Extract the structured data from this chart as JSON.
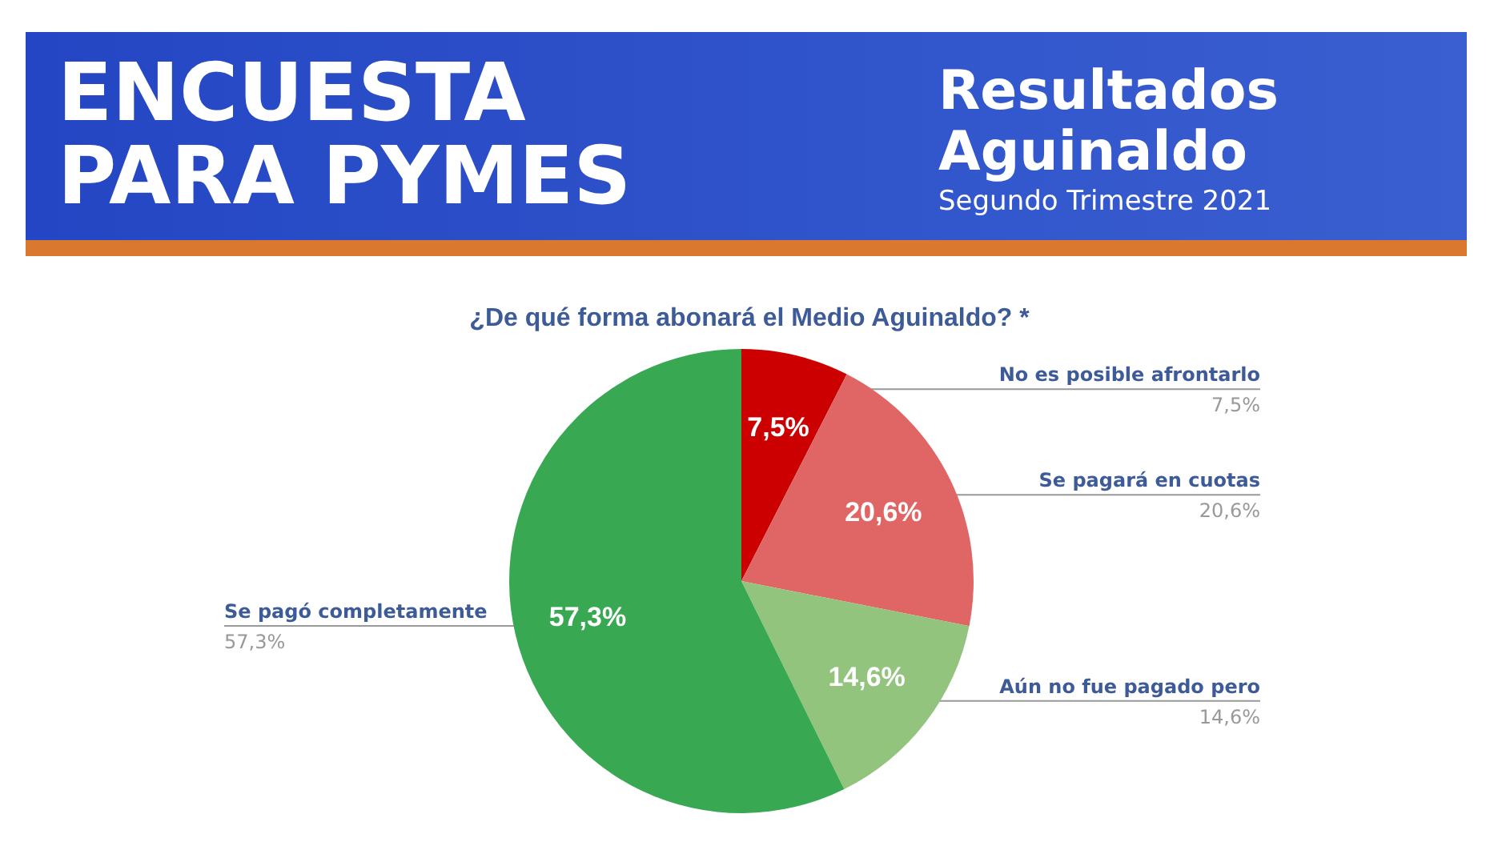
{
  "chart_data": {
    "type": "pie",
    "title": "ENCUESTA PARA PYMES",
    "subtitle": "Resultados Aguinaldo",
    "annotations": [
      "Segundo Trimestre 2021",
      "¿De qué forma abonará el Medio Aguinaldo? *"
    ],
    "categories": [
      "No es posible afrontarlo",
      "Se pagará en cuotas",
      "Aún no fue pagado pero",
      "Se pagó completamente"
    ],
    "values": [
      7.5,
      20.6,
      14.6,
      57.3
    ],
    "colors": [
      "#cc0000",
      "#e06666",
      "#93c47d",
      "#38a853"
    ],
    "value_labels": [
      "7,5%",
      "20,6%",
      "14,6%",
      "57,3%"
    ],
    "legend": false
  }
}
